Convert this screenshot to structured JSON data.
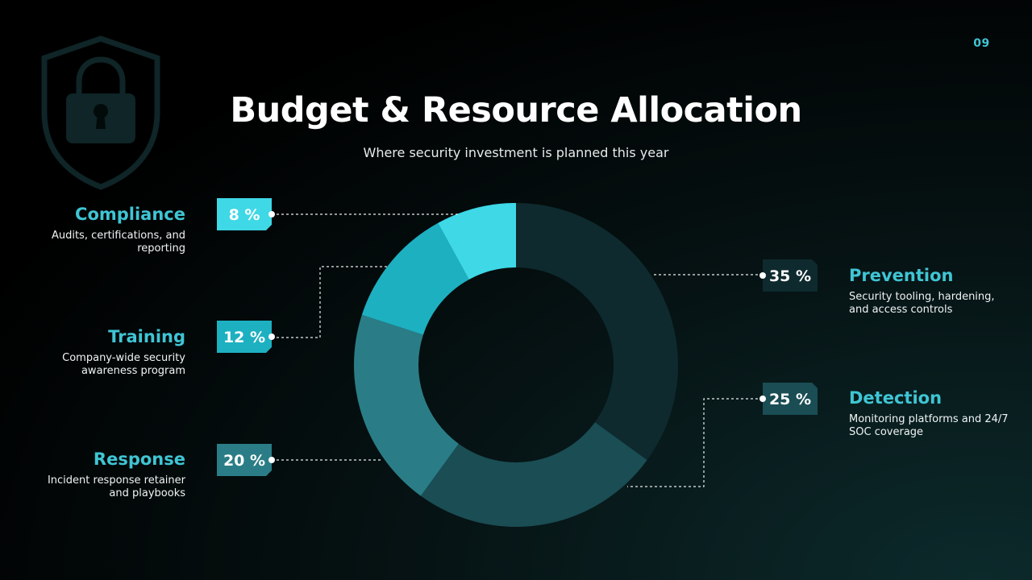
{
  "page_number": "09",
  "title": "Budget & Resource Allocation",
  "subtitle": "Where security investment is planned this year",
  "chart_data": {
    "type": "pie",
    "variant": "donut",
    "values_unit": "%",
    "slices": [
      {
        "name": "Prevention",
        "value": 35,
        "label": "35 %",
        "color": "#0e2a2e",
        "description": "Security tooling, hardening, and access controls"
      },
      {
        "name": "Detection",
        "value": 25,
        "label": "25 %",
        "color": "#1a4d54",
        "description": "Monitoring platforms and 24/7 SOC coverage"
      },
      {
        "name": "Response",
        "value": 20,
        "label": "20 %",
        "color": "#2a7d86",
        "description": "Incident response retainer and playbooks"
      },
      {
        "name": "Training",
        "value": 12,
        "label": "12 %",
        "color": "#1db0c1",
        "description": "Company-wide security awareness program"
      },
      {
        "name": "Compliance",
        "value": 8,
        "label": "8 %",
        "color": "#3ed8e6",
        "description": "Audits, certifications, and reporting"
      }
    ]
  },
  "decorations": {
    "background_icon": "shield-lock-icon"
  },
  "colors": {
    "accent": "#3fc5d4",
    "background": "#000000"
  }
}
